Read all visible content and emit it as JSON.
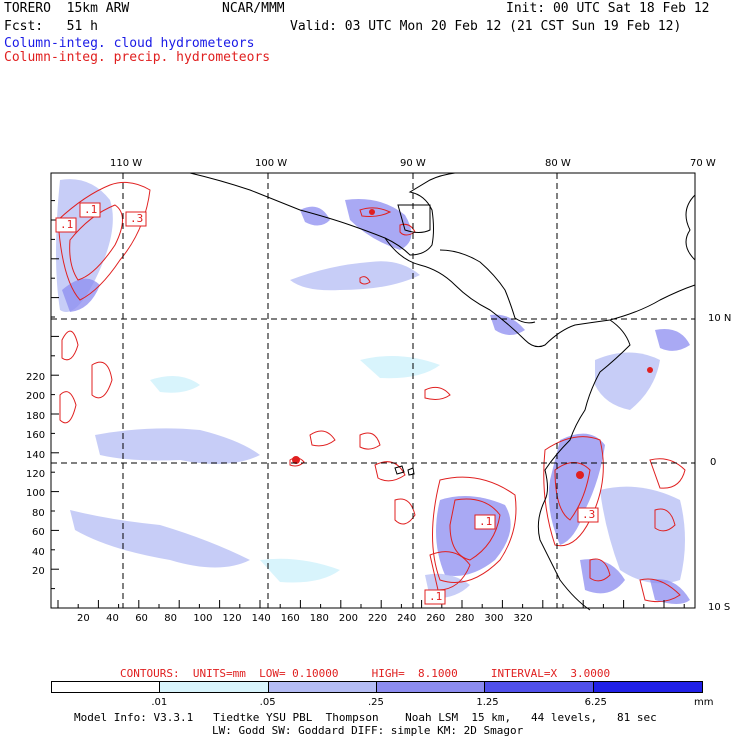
{
  "header": {
    "model": "TORERO  15km ARW",
    "org": "NCAR/MMM",
    "init": "Init: 00 UTC Sat 18 Feb 12",
    "fcst": "Fcst:   51 h",
    "valid": "Valid: 03 UTC Mon 20 Feb 12 (21 CST Sun 19 Feb 12)",
    "field1": "Column-integ. cloud hydrometeors",
    "field2": "Column-integ. precip. hydrometeors"
  },
  "axes": {
    "lon_labels": [
      "110 W",
      "100 W",
      "90 W",
      "80 W",
      "70 W"
    ],
    "lat_labels": [
      "10 N",
      "0",
      "10 S"
    ],
    "grid_x_ticks": [
      "20",
      "40",
      "60",
      "80",
      "100",
      "120",
      "140",
      "160",
      "180",
      "200",
      "220",
      "240",
      "260",
      "280",
      "300",
      "320"
    ],
    "grid_y_ticks": [
      "20",
      "40",
      "60",
      "80",
      "100",
      "120",
      "140",
      "160",
      "180",
      "200",
      "220"
    ]
  },
  "contour_labels": [
    ".1",
    ".1",
    ".3",
    ".1",
    ".1",
    ".3"
  ],
  "contour_info": {
    "contours": "CONTOURS:  UNITS=mm  LOW= 0.10000     HIGH=  8.1000     INTERVAL=X  3.0000"
  },
  "colorbar": {
    "labels": [
      ".01",
      ".05",
      ".25",
      "1.25",
      "6.25"
    ],
    "unit": "mm",
    "colors": [
      "#ffffff",
      "#d8f4fc",
      "#b4bcf4",
      "#8c8cf0",
      "#5050ea",
      "#2020e6"
    ]
  },
  "footer": {
    "line1": "Model Info: V3.3.1   Tiedtke YSU PBL  Thompson    Noah LSM  15 km,   44 levels,   81 sec",
    "line2": "LW: Godd SW: Goddard DIFF: simple KM: 2D Smagor"
  },
  "colors": {
    "cloud": "#8c8cf0",
    "precip": "#e02020",
    "coast": "#000000"
  }
}
